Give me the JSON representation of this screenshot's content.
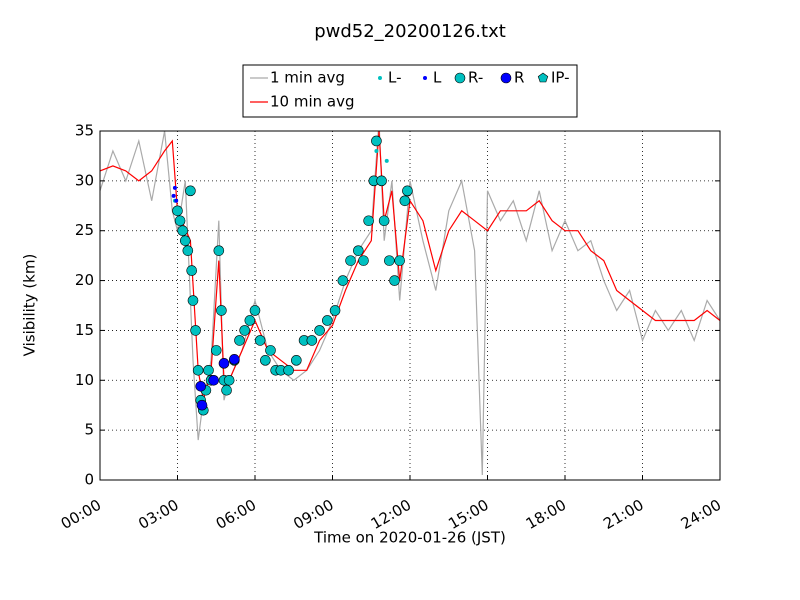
{
  "chart_data": {
    "type": "line",
    "title": "pwd52_20200126.txt",
    "xlabel": "Time on 2020-01-26 (JST)",
    "ylabel": "Visibility (km)",
    "xlim": [
      0,
      24
    ],
    "ylim": [
      0,
      35
    ],
    "xticks": [
      {
        "value": 0,
        "label": "00:00"
      },
      {
        "value": 3,
        "label": "03:00"
      },
      {
        "value": 6,
        "label": "06:00"
      },
      {
        "value": 9,
        "label": "09:00"
      },
      {
        "value": 12,
        "label": "12:00"
      },
      {
        "value": 15,
        "label": "15:00"
      },
      {
        "value": 18,
        "label": "18:00"
      },
      {
        "value": 21,
        "label": "21:00"
      },
      {
        "value": 24,
        "label": "24:00"
      }
    ],
    "yticks": [
      0,
      5,
      10,
      15,
      20,
      25,
      30,
      35
    ],
    "grid": true,
    "legend": "top",
    "series": [
      {
        "name": "1 min avg",
        "color": "#aaaaaa",
        "marker": "line",
        "x": [
          0,
          0.5,
          1,
          1.5,
          2,
          2.5,
          2.8,
          3,
          3.3,
          3.6,
          3.8,
          4,
          4.3,
          4.6,
          4.8,
          5,
          5.5,
          6,
          6.5,
          7,
          7.5,
          8,
          8.5,
          9,
          9.5,
          10,
          10.5,
          10.8,
          11,
          11.3,
          11.6,
          12,
          12.5,
          13,
          13.5,
          14,
          14.5,
          14.8,
          15,
          15.5,
          16,
          16.5,
          17,
          17.5,
          18,
          18.5,
          19,
          19.5,
          20,
          20.5,
          21,
          21.5,
          22,
          22.5,
          23,
          23.5,
          24
        ],
        "values": [
          29,
          33,
          30,
          34,
          28,
          35,
          27,
          25,
          30,
          12,
          4,
          8,
          12,
          26,
          8,
          10,
          13,
          18,
          13,
          11,
          10,
          11,
          13,
          16,
          20,
          23,
          25,
          36,
          24,
          30,
          18,
          30,
          24,
          19,
          27,
          30,
          23,
          0.5,
          29,
          26,
          28,
          24,
          29,
          23,
          26,
          23,
          24,
          20,
          17,
          19,
          14,
          17,
          15,
          17,
          14,
          18,
          16
        ]
      },
      {
        "name": "L-",
        "color": "#00c0c0",
        "marker": "dot",
        "x": [
          2.9,
          10.7,
          11.1
        ],
        "values": [
          28,
          33,
          32
        ]
      },
      {
        "name": "L",
        "color": "#0000ff",
        "marker": "dot",
        "x": [
          2.85,
          2.9,
          2.95
        ],
        "values": [
          28.5,
          29.3,
          28
        ]
      },
      {
        "name": "R-",
        "color": "#00c0c0",
        "marker": "circle",
        "x": [
          3.0,
          3.1,
          3.2,
          3.3,
          3.4,
          3.5,
          3.55,
          3.6,
          3.7,
          3.8,
          3.9,
          4.0,
          4.1,
          4.2,
          4.3,
          4.5,
          4.6,
          4.7,
          4.8,
          4.9,
          5.0,
          5.2,
          5.4,
          5.6,
          5.8,
          6.0,
          6.2,
          6.4,
          6.6,
          6.8,
          7.0,
          7.3,
          7.6,
          7.9,
          8.2,
          8.5,
          8.8,
          9.1,
          9.4,
          9.7,
          10.0,
          10.2,
          10.4,
          10.6,
          10.7,
          10.9,
          11.0,
          11.2,
          11.4,
          11.6,
          11.8,
          11.9
        ],
        "values": [
          27,
          26,
          25,
          24,
          23,
          29,
          21,
          18,
          15,
          11,
          8,
          7,
          9,
          11,
          10,
          13,
          23,
          17,
          10,
          9,
          10,
          12,
          14,
          15,
          16,
          17,
          14,
          12,
          13,
          11,
          11,
          11,
          12,
          14,
          14,
          15,
          16,
          17,
          20,
          22,
          23,
          22,
          26,
          30,
          34,
          30,
          26,
          22,
          20,
          22,
          28,
          29
        ]
      },
      {
        "name": "R",
        "color": "#0000ff",
        "marker": "circle",
        "x": [
          3.9,
          3.95,
          4.4,
          4.8,
          5.2
        ],
        "values": [
          9.4,
          7.5,
          10,
          11.7,
          12.1
        ]
      },
      {
        "name": "IP-",
        "color": "#00c0c0",
        "marker": "pentagon",
        "x": [],
        "values": []
      },
      {
        "name": "10 min avg",
        "color": "#ff0000",
        "marker": "line",
        "x": [
          0,
          0.5,
          1,
          1.5,
          2,
          2.5,
          2.8,
          3,
          3.5,
          3.8,
          4,
          4.3,
          4.6,
          4.8,
          5,
          5.5,
          6,
          6.5,
          7,
          7.5,
          8,
          8.5,
          9,
          9.5,
          10,
          10.5,
          10.8,
          11,
          11.3,
          11.6,
          12,
          12.5,
          13,
          13.5,
          14,
          14.5,
          15,
          15.5,
          16,
          16.5,
          17,
          17.5,
          18,
          18.5,
          19,
          19.5,
          20,
          20.5,
          21,
          21.5,
          22,
          22.5,
          23,
          23.5,
          24
        ],
        "values": [
          31,
          31.5,
          31,
          30,
          31,
          33,
          34,
          27,
          24,
          11,
          8,
          11,
          22,
          10,
          10,
          13,
          16,
          13,
          12,
          11,
          11,
          14,
          15.5,
          19,
          22,
          24,
          35,
          26,
          29,
          20,
          28,
          26,
          21,
          25,
          27,
          26,
          25,
          27,
          27,
          27,
          28,
          26,
          25,
          25,
          23,
          22,
          19,
          18,
          17,
          16,
          16,
          16,
          16,
          17,
          16
        ]
      }
    ]
  }
}
